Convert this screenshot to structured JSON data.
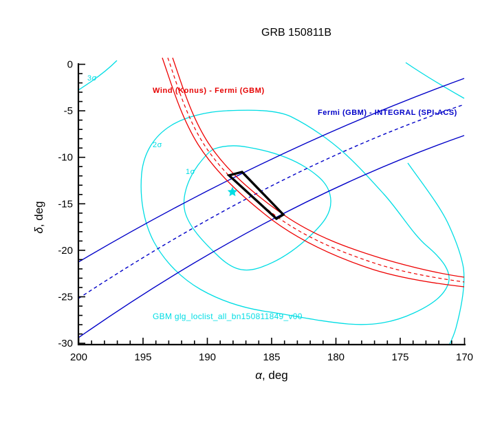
{
  "title": "GRB 150811B",
  "axes": {
    "x": {
      "symbol": "α",
      "rest": ", deg"
    },
    "y": {
      "symbol": "δ",
      "rest": ", deg"
    }
  },
  "legend": {
    "konus_fermi": "Wind (Konus) - Fermi (GBM)",
    "fermi_integral": "Fermi (GBM) - INTEGRAL (SPI-ACS)",
    "gbm_file": "GBM glg_loclist_all_bn150811849_v00"
  },
  "contour_labels": {
    "s1": "1σ",
    "s2": "2σ",
    "s3": "3σ"
  },
  "colors": {
    "red": "#ee0000",
    "navy": "#0000c8",
    "cyan": "#00dde4",
    "black": "#000000"
  },
  "chart_data": {
    "type": "line",
    "title": "GRB 150811B",
    "xlabel": "α, deg",
    "ylabel": "δ, deg",
    "xlim": [
      200,
      170
    ],
    "ylim": [
      -30,
      0
    ],
    "x_ticks": [
      200,
      195,
      190,
      185,
      180,
      175,
      170
    ],
    "y_ticks": [
      0,
      -5,
      -10,
      -15,
      -20,
      -25,
      -30
    ],
    "x_minor_step": 1,
    "y_minor_step": 1,
    "grid": false,
    "series": [
      {
        "name": "GBM 1-sigma contour",
        "style": "cyan solid closed",
        "points": [
          [
            189.5,
            -9.1
          ],
          [
            186.9,
            -8.9
          ],
          [
            182.4,
            -11.1
          ],
          [
            180.4,
            -14.6
          ],
          [
            182.0,
            -18.4
          ],
          [
            186.1,
            -21.9
          ],
          [
            189.3,
            -20.5
          ],
          [
            191.7,
            -15.9
          ],
          [
            190.7,
            -10.8
          ]
        ]
      },
      {
        "name": "GBM 2-sigma contour",
        "style": "cyan solid closed",
        "points": [
          [
            188.5,
            -5.0
          ],
          [
            192.9,
            -6.6
          ],
          [
            195.1,
            -11.7
          ],
          [
            194.1,
            -19.1
          ],
          [
            190.5,
            -24.2
          ],
          [
            185.4,
            -26.6
          ],
          [
            179.1,
            -27.9
          ],
          [
            173.9,
            -26.7
          ],
          [
            171.3,
            -23.6
          ],
          [
            173.0,
            -19.5
          ],
          [
            176.3,
            -13.9
          ],
          [
            179.4,
            -9.5
          ],
          [
            183.4,
            -5.7
          ]
        ]
      },
      {
        "name": "GBM 3-sigma contour (visible arcs)",
        "style": "cyan solid open",
        "points": [
          [
            197.0,
            0.4
          ],
          [
            200.0,
            -2.8
          ],
          [
            174.6,
            0.2
          ],
          [
            170.0,
            -3.7
          ],
          [
            174.4,
            -10.6
          ],
          [
            171.2,
            -17.3
          ],
          [
            170.1,
            -21.9
          ],
          [
            170.7,
            -28.4
          ],
          [
            171.2,
            -30.0
          ]
        ]
      },
      {
        "name": "Wind (Konus) - Fermi (GBM) annulus centerline",
        "style": "red dashed, band half-width ~0.5 deg",
        "points": [
          [
            193.1,
            0.7
          ],
          [
            190.3,
            -8.5
          ],
          [
            187.9,
            -11.9
          ],
          [
            184.5,
            -16.5
          ],
          [
            181.0,
            -19.2
          ],
          [
            176.8,
            -21.5
          ],
          [
            173.0,
            -23.0
          ],
          [
            170.0,
            -23.4
          ]
        ]
      },
      {
        "name": "Fermi (GBM) - INTEGRAL (SPI-ACS) annulus centerline",
        "style": "navy dashed",
        "points": [
          [
            200.0,
            -25.2
          ],
          [
            184.6,
            -13.1
          ],
          [
            170.0,
            -4.3
          ]
        ]
      },
      {
        "name": "SPI-ACS annulus upper edge",
        "style": "navy solid",
        "points": [
          [
            200.0,
            -21.3
          ],
          [
            184.6,
            -11.9
          ],
          [
            170.0,
            -1.5
          ]
        ]
      },
      {
        "name": "SPI-ACS annulus lower edge",
        "style": "navy solid",
        "points": [
          [
            200.0,
            -29.4
          ],
          [
            184.8,
            -17.0
          ],
          [
            170.0,
            -7.7
          ]
        ]
      },
      {
        "name": "intersection box",
        "style": "black thick closed",
        "points": [
          [
            188.3,
            -11.9
          ],
          [
            187.3,
            -11.6
          ],
          [
            184.1,
            -16.2
          ],
          [
            184.6,
            -16.6
          ]
        ]
      },
      {
        "name": "GBM center star",
        "style": "cyan star marker",
        "points": [
          [
            188.1,
            -13.6
          ]
        ]
      }
    ]
  }
}
